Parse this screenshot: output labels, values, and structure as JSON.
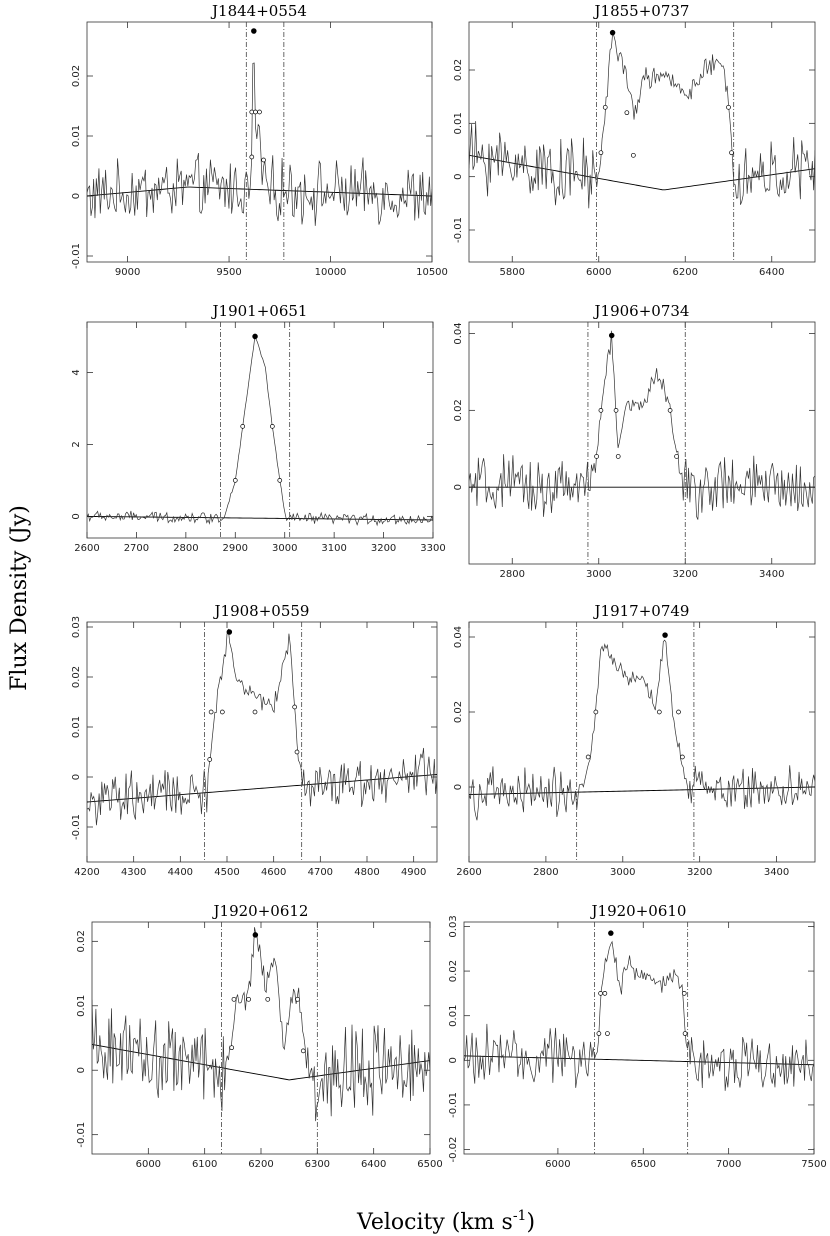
{
  "figure": {
    "ylabel": "Flux Density (Jy)",
    "xlabel_main": "Velocity (km s",
    "xlabel_sup": "-1",
    "xlabel_close": ")"
  },
  "chart_data": [
    {
      "type": "line",
      "title": "J1844+0554",
      "xlim": [
        8800,
        10500
      ],
      "ylim": [
        -0.011,
        0.029
      ],
      "xticks": [
        9000,
        9500,
        10000,
        10500
      ],
      "yticks": [
        -0.01,
        0,
        0.01,
        0.02
      ],
      "vlines": [
        9585,
        9770
      ],
      "baseline": [
        [
          8800,
          0.0
        ],
        [
          9300,
          0.0015
        ],
        [
          10500,
          0.0
        ]
      ],
      "profile": [
        [
          9610,
          0.003
        ],
        [
          9620,
          0.028
        ],
        [
          9632,
          0.009
        ],
        [
          9648,
          0.012
        ],
        [
          9662,
          0.003
        ],
        [
          9680,
          0.006
        ]
      ],
      "noise": 0.004,
      "markers": [
        [
          9622,
          0.0275,
          "filled"
        ],
        [
          9612,
          0.014,
          "open"
        ],
        [
          9612,
          0.0065,
          "open"
        ],
        [
          9630,
          0.014,
          "open"
        ],
        [
          9650,
          0.014,
          "open"
        ],
        [
          9670,
          0.006,
          "open"
        ]
      ]
    },
    {
      "type": "line",
      "title": "J1855+0737",
      "xlim": [
        5700,
        6500
      ],
      "ylim": [
        -0.016,
        0.029
      ],
      "xticks": [
        5800,
        6000,
        6200,
        6400
      ],
      "yticks": [
        -0.01,
        0,
        0.01,
        0.02
      ],
      "vlines": [
        5995,
        6312
      ],
      "baseline": [
        [
          5700,
          0.004
        ],
        [
          6150,
          -0.0025
        ],
        [
          6500,
          0.0015
        ]
      ],
      "profile": [
        [
          6005,
          0.004
        ],
        [
          6015,
          0.013
        ],
        [
          6032,
          0.027
        ],
        [
          6055,
          0.021
        ],
        [
          6080,
          0.012
        ],
        [
          6110,
          0.019
        ],
        [
          6160,
          0.018
        ],
        [
          6210,
          0.016
        ],
        [
          6260,
          0.021
        ],
        [
          6290,
          0.02
        ],
        [
          6302,
          0.013
        ],
        [
          6310,
          0.004
        ]
      ],
      "noise": 0.005,
      "markers": [
        [
          6032,
          0.027,
          "filled"
        ],
        [
          6005,
          0.0045,
          "open"
        ],
        [
          6015,
          0.013,
          "open"
        ],
        [
          6065,
          0.012,
          "open"
        ],
        [
          6080,
          0.004,
          "open"
        ],
        [
          6300,
          0.013,
          "open"
        ],
        [
          6307,
          0.0045,
          "open"
        ]
      ]
    },
    {
      "type": "line",
      "title": "J1901+0651",
      "xlim": [
        2600,
        3300
      ],
      "ylim": [
        -0.6,
        5.4
      ],
      "xticks": [
        2600,
        2700,
        2800,
        2900,
        3000,
        3100,
        3200,
        3300
      ],
      "yticks": [
        0,
        2,
        4
      ],
      "vlines": [
        2870,
        3010
      ],
      "baseline": [
        [
          2600,
          0.0
        ],
        [
          3300,
          -0.1
        ]
      ],
      "profile": [
        [
          2880,
          0.1
        ],
        [
          2900,
          1.0
        ],
        [
          2915,
          2.5
        ],
        [
          2940,
          5.0
        ],
        [
          2960,
          4.2
        ],
        [
          2975,
          2.5
        ],
        [
          2990,
          1.0
        ],
        [
          3000,
          0.1
        ]
      ],
      "noise": 0.12,
      "markers": [
        [
          2940,
          5.0,
          "filled"
        ],
        [
          2900,
          1.0,
          "open"
        ],
        [
          2915,
          2.5,
          "open"
        ],
        [
          2975,
          2.5,
          "open"
        ],
        [
          2990,
          1.0,
          "open"
        ]
      ]
    },
    {
      "type": "line",
      "title": "J1906+0734",
      "xlim": [
        2700,
        3500
      ],
      "ylim": [
        -0.02,
        0.043
      ],
      "xticks": [
        2800,
        3000,
        3200,
        3400
      ],
      "yticks": [
        0,
        0.02,
        0.04
      ],
      "vlines": [
        2975,
        3200
      ],
      "baseline": [
        [
          2700,
          0.0
        ],
        [
          3500,
          0.0
        ]
      ],
      "profile": [
        [
          2985,
          0.002
        ],
        [
          2995,
          0.008
        ],
        [
          3005,
          0.02
        ],
        [
          3030,
          0.04
        ],
        [
          3045,
          0.008
        ],
        [
          3060,
          0.02
        ],
        [
          3100,
          0.022
        ],
        [
          3140,
          0.03
        ],
        [
          3165,
          0.02
        ],
        [
          3180,
          0.008
        ],
        [
          3195,
          0.002
        ]
      ],
      "noise": 0.006,
      "markers": [
        [
          3030,
          0.0395,
          "filled"
        ],
        [
          2995,
          0.008,
          "open"
        ],
        [
          3005,
          0.02,
          "open"
        ],
        [
          3040,
          0.02,
          "open"
        ],
        [
          3045,
          0.008,
          "open"
        ],
        [
          3165,
          0.02,
          "open"
        ],
        [
          3180,
          0.008,
          "open"
        ]
      ]
    },
    {
      "type": "line",
      "title": "J1908+0559",
      "xlim": [
        4200,
        4950
      ],
      "ylim": [
        -0.017,
        0.031
      ],
      "xticks": [
        4200,
        4300,
        4400,
        4500,
        4600,
        4700,
        4800,
        4900
      ],
      "yticks": [
        -0.01,
        0,
        0.01,
        0.02,
        0.03
      ],
      "vlines": [
        4452,
        4660
      ],
      "baseline": [
        [
          4200,
          -0.005
        ],
        [
          4950,
          0.0005
        ]
      ],
      "profile": [
        [
          4458,
          0.0
        ],
        [
          4465,
          0.004
        ],
        [
          4475,
          0.013
        ],
        [
          4502,
          0.029
        ],
        [
          4520,
          0.02
        ],
        [
          4560,
          0.016
        ],
        [
          4600,
          0.014
        ],
        [
          4635,
          0.028
        ],
        [
          4645,
          0.014
        ],
        [
          4652,
          0.005
        ],
        [
          4660,
          0.0
        ]
      ],
      "noise": 0.004,
      "markers": [
        [
          4505,
          0.029,
          "filled"
        ],
        [
          4463,
          0.0035,
          "open"
        ],
        [
          4466,
          0.013,
          "open"
        ],
        [
          4490,
          0.013,
          "open"
        ],
        [
          4560,
          0.013,
          "open"
        ],
        [
          4645,
          0.014,
          "open"
        ],
        [
          4650,
          0.005,
          "open"
        ]
      ]
    },
    {
      "type": "line",
      "title": "J1917+0749",
      "xlim": [
        2600,
        3500
      ],
      "ylim": [
        -0.02,
        0.044
      ],
      "xticks": [
        2600,
        2800,
        3000,
        3200,
        3400
      ],
      "yticks": [
        0,
        0.02,
        0.04
      ],
      "vlines": [
        2880,
        3185
      ],
      "baseline": [
        [
          2600,
          -0.002
        ],
        [
          3500,
          0.0
        ]
      ],
      "profile": [
        [
          2895,
          0.0
        ],
        [
          2915,
          0.008
        ],
        [
          2930,
          0.02
        ],
        [
          2945,
          0.038
        ],
        [
          3000,
          0.03
        ],
        [
          3050,
          0.028
        ],
        [
          3085,
          0.022
        ],
        [
          3110,
          0.04
        ],
        [
          3130,
          0.02
        ],
        [
          3150,
          0.008
        ],
        [
          3170,
          0.0
        ]
      ],
      "noise": 0.005,
      "markers": [
        [
          3110,
          0.0405,
          "filled"
        ],
        [
          2910,
          0.008,
          "open"
        ],
        [
          2930,
          0.02,
          "open"
        ],
        [
          3095,
          0.02,
          "open"
        ],
        [
          3145,
          0.02,
          "open"
        ],
        [
          3155,
          0.008,
          "open"
        ]
      ]
    },
    {
      "type": "line",
      "title": "J1920+0612",
      "xlim": [
        5900,
        6500
      ],
      "ylim": [
        -0.013,
        0.023
      ],
      "xticks": [
        6000,
        6100,
        6200,
        6300,
        6400,
        6500
      ],
      "yticks": [
        -0.01,
        0,
        0.01,
        0.02
      ],
      "vlines": [
        6130,
        6300
      ],
      "baseline": [
        [
          5900,
          0.004
        ],
        [
          6250,
          -0.0015
        ],
        [
          6500,
          0.0015
        ]
      ],
      "profile": [
        [
          6140,
          0.001
        ],
        [
          6148,
          0.0035
        ],
        [
          6155,
          0.011
        ],
        [
          6175,
          0.011
        ],
        [
          6190,
          0.021
        ],
        [
          6210,
          0.013
        ],
        [
          6225,
          0.018
        ],
        [
          6240,
          0.003
        ],
        [
          6258,
          0.012
        ],
        [
          6268,
          0.011
        ],
        [
          6278,
          0.003
        ],
        [
          6290,
          0.0
        ]
      ],
      "noise": 0.005,
      "markers": [
        [
          6190,
          0.021,
          "filled"
        ],
        [
          6148,
          0.0035,
          "open"
        ],
        [
          6152,
          0.011,
          "open"
        ],
        [
          6178,
          0.011,
          "open"
        ],
        [
          6212,
          0.011,
          "open"
        ],
        [
          6265,
          0.011,
          "open"
        ],
        [
          6275,
          0.003,
          "open"
        ]
      ]
    },
    {
      "type": "line",
      "title": "J1920+0610",
      "xlim": [
        5450,
        7500
      ],
      "ylim": [
        -0.021,
        0.031
      ],
      "xticks": [
        6000,
        6500,
        7000,
        7500
      ],
      "yticks": [
        -0.02,
        -0.01,
        0,
        0.01,
        0.02,
        0.03
      ],
      "vlines": [
        6215,
        6760
      ],
      "baseline": [
        [
          5450,
          0.001
        ],
        [
          7500,
          -0.001
        ]
      ],
      "profile": [
        [
          6225,
          0.001
        ],
        [
          6240,
          0.006
        ],
        [
          6250,
          0.015
        ],
        [
          6310,
          0.028
        ],
        [
          6370,
          0.015
        ],
        [
          6400,
          0.022
        ],
        [
          6500,
          0.019
        ],
        [
          6600,
          0.017
        ],
        [
          6700,
          0.019
        ],
        [
          6735,
          0.015
        ],
        [
          6748,
          0.006
        ],
        [
          6755,
          0.0
        ]
      ],
      "noise": 0.005,
      "markers": [
        [
          6310,
          0.0285,
          "filled"
        ],
        [
          6240,
          0.006,
          "open"
        ],
        [
          6250,
          0.015,
          "open"
        ],
        [
          6275,
          0.015,
          "open"
        ],
        [
          6290,
          0.006,
          "open"
        ],
        [
          6740,
          0.015,
          "open"
        ],
        [
          6745,
          0.006,
          "open"
        ]
      ]
    }
  ]
}
